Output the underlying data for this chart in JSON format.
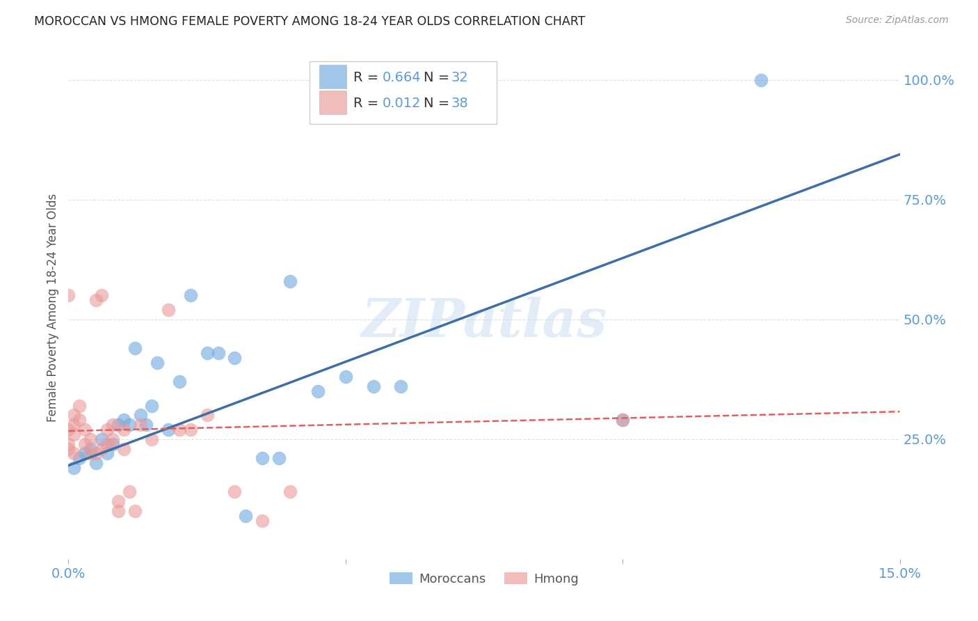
{
  "title": "MOROCCAN VS HMONG FEMALE POVERTY AMONG 18-24 YEAR OLDS CORRELATION CHART",
  "source": "Source: ZipAtlas.com",
  "ylabel": "Female Poverty Among 18-24 Year Olds",
  "xlim": [
    0.0,
    0.15
  ],
  "ylim": [
    0.0,
    1.05
  ],
  "xtick_positions": [
    0.0,
    0.05,
    0.1,
    0.15
  ],
  "xtick_labels": [
    "0.0%",
    "",
    "",
    "15.0%"
  ],
  "ytick_labels": [
    "25.0%",
    "50.0%",
    "75.0%",
    "100.0%"
  ],
  "ytick_positions": [
    0.25,
    0.5,
    0.75,
    1.0
  ],
  "watermark": "ZIPatlas",
  "moroccan_color": "#6fa8dc",
  "hmong_color": "#ea9999",
  "moroccan_line_color": "#3d6fa5",
  "hmong_line_color": "#e06060",
  "moroccan_R": "0.664",
  "moroccan_N": "32",
  "hmong_R": "0.012",
  "hmong_N": "38",
  "moroccan_x": [
    0.001,
    0.002,
    0.003,
    0.004,
    0.005,
    0.006,
    0.007,
    0.008,
    0.009,
    0.01,
    0.011,
    0.012,
    0.013,
    0.014,
    0.015,
    0.016,
    0.018,
    0.02,
    0.022,
    0.025,
    0.027,
    0.03,
    0.032,
    0.035,
    0.038,
    0.04,
    0.045,
    0.05,
    0.055,
    0.06,
    0.1,
    0.125
  ],
  "moroccan_y": [
    0.19,
    0.21,
    0.22,
    0.23,
    0.2,
    0.25,
    0.22,
    0.24,
    0.28,
    0.29,
    0.28,
    0.44,
    0.3,
    0.28,
    0.32,
    0.41,
    0.27,
    0.37,
    0.55,
    0.43,
    0.43,
    0.42,
    0.09,
    0.21,
    0.21,
    0.58,
    0.35,
    0.38,
    0.36,
    0.36,
    0.29,
    1.0
  ],
  "hmong_x": [
    0.0,
    0.0,
    0.0,
    0.0,
    0.001,
    0.001,
    0.001,
    0.001,
    0.002,
    0.002,
    0.003,
    0.003,
    0.004,
    0.004,
    0.005,
    0.005,
    0.006,
    0.006,
    0.007,
    0.007,
    0.008,
    0.008,
    0.009,
    0.009,
    0.01,
    0.01,
    0.011,
    0.012,
    0.013,
    0.015,
    0.018,
    0.02,
    0.022,
    0.025,
    0.03,
    0.035,
    0.04,
    0.1
  ],
  "hmong_y": [
    0.24,
    0.23,
    0.55,
    0.27,
    0.28,
    0.22,
    0.26,
    0.3,
    0.29,
    0.32,
    0.24,
    0.27,
    0.22,
    0.25,
    0.22,
    0.54,
    0.23,
    0.55,
    0.24,
    0.27,
    0.25,
    0.28,
    0.1,
    0.12,
    0.27,
    0.23,
    0.14,
    0.1,
    0.28,
    0.25,
    0.52,
    0.27,
    0.27,
    0.3,
    0.14,
    0.08,
    0.14,
    0.29
  ],
  "background_color": "#ffffff",
  "grid_color": "#e0e0e0",
  "tick_label_color": "#5b9bd5",
  "title_color": "#222222",
  "text_color_dark": "#333333",
  "r_value_color": "#5b9bd5",
  "n_value_color": "#5b9bd5"
}
